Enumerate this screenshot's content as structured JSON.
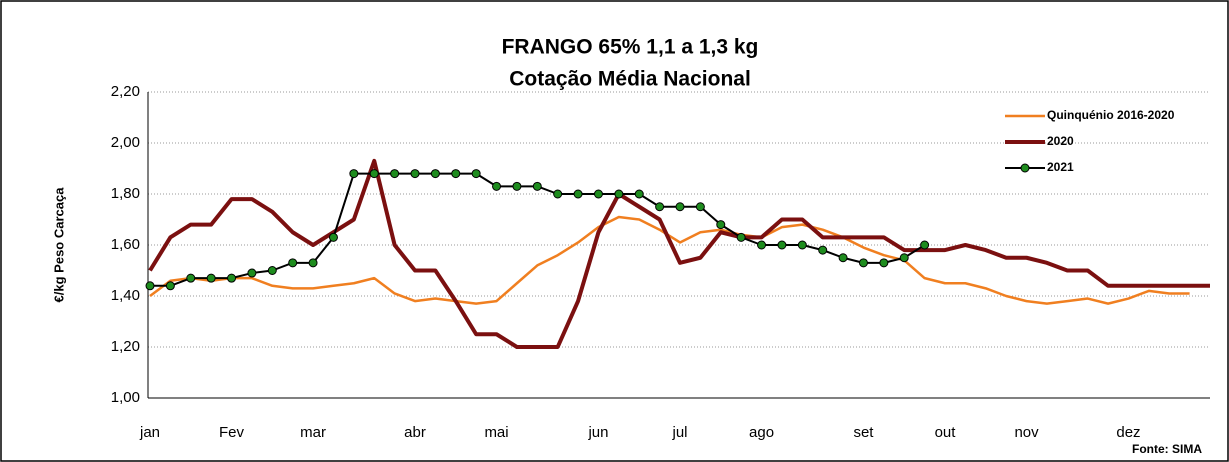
{
  "chart_data": {
    "type": "line",
    "title": "FRANGO 65%  1,1 a 1,3 kg",
    "subtitle": "Cotação Média Nacional",
    "y_label": "€/kg Peso Carcaça",
    "source": "Fonte: SIMA",
    "categories": [
      "jan",
      null,
      null,
      null,
      "Fev",
      null,
      null,
      null,
      "mar",
      null,
      null,
      null,
      null,
      "abr",
      null,
      null,
      null,
      "mai",
      null,
      null,
      null,
      null,
      "jun",
      null,
      null,
      null,
      "jul",
      null,
      null,
      null,
      "ago",
      null,
      null,
      null,
      null,
      "set",
      null,
      null,
      null,
      "out",
      null,
      null,
      null,
      "nov",
      null,
      null,
      null,
      null,
      "dez",
      null,
      null,
      null,
      null
    ],
    "series": [
      {
        "name": "Quinquénio 2016-2020",
        "color": "#f07f20",
        "values": [
          1.4,
          1.46,
          1.47,
          1.46,
          1.47,
          1.47,
          1.44,
          1.43,
          1.43,
          1.44,
          1.45,
          1.47,
          1.41,
          1.38,
          1.39,
          1.38,
          1.37,
          1.38,
          1.45,
          1.52,
          1.56,
          1.61,
          1.67,
          1.71,
          1.7,
          1.66,
          1.61,
          1.65,
          1.66,
          1.64,
          1.63,
          1.67,
          1.68,
          1.66,
          1.63,
          1.59,
          1.56,
          1.54,
          1.47,
          1.45,
          1.45,
          1.43,
          1.4,
          1.38,
          1.37,
          1.38,
          1.39,
          1.37,
          1.39,
          1.42,
          1.41,
          1.41,
          null
        ]
      },
      {
        "name": "2020",
        "color": "#7b1010",
        "values": [
          1.5,
          1.63,
          1.68,
          1.68,
          1.78,
          1.78,
          1.73,
          1.65,
          1.6,
          1.65,
          1.7,
          1.93,
          1.6,
          1.5,
          1.5,
          1.38,
          1.25,
          1.25,
          1.2,
          1.2,
          1.2,
          1.38,
          1.65,
          1.8,
          1.75,
          1.7,
          1.53,
          1.55,
          1.65,
          1.63,
          1.63,
          1.7,
          1.7,
          1.63,
          1.63,
          1.63,
          1.63,
          1.58,
          1.58,
          1.58,
          1.6,
          1.58,
          1.55,
          1.55,
          1.53,
          1.5,
          1.5,
          1.44,
          1.44,
          1.44,
          1.44,
          1.44,
          1.44
        ]
      },
      {
        "name": "2021",
        "color": "#000000",
        "marker_color": "#1e8c1e",
        "values": [
          1.44,
          1.44,
          1.47,
          1.47,
          1.47,
          1.49,
          1.5,
          1.53,
          1.53,
          1.63,
          1.88,
          1.88,
          1.88,
          1.88,
          1.88,
          1.88,
          1.88,
          1.83,
          1.83,
          1.83,
          1.8,
          1.8,
          1.8,
          1.8,
          1.8,
          1.75,
          1.75,
          1.75,
          1.68,
          1.63,
          1.6,
          1.6,
          1.6,
          1.58,
          1.55,
          1.53,
          1.53,
          1.55,
          1.6,
          null,
          null,
          null,
          null,
          null,
          null,
          null,
          null,
          null,
          null,
          null,
          null,
          null,
          null
        ]
      }
    ],
    "ylim": [
      1.0,
      2.2
    ],
    "yticks": [
      {
        "value": 1.0,
        "label": "1,00"
      },
      {
        "value": 1.2,
        "label": "1,20"
      },
      {
        "value": 1.4,
        "label": "1,40"
      },
      {
        "value": 1.6,
        "label": "1,60"
      },
      {
        "value": 1.8,
        "label": "1,80"
      },
      {
        "value": 2.0,
        "label": "2,00"
      },
      {
        "value": 2.2,
        "label": "2,20"
      }
    ],
    "grid": true,
    "legend": "upper right"
  }
}
